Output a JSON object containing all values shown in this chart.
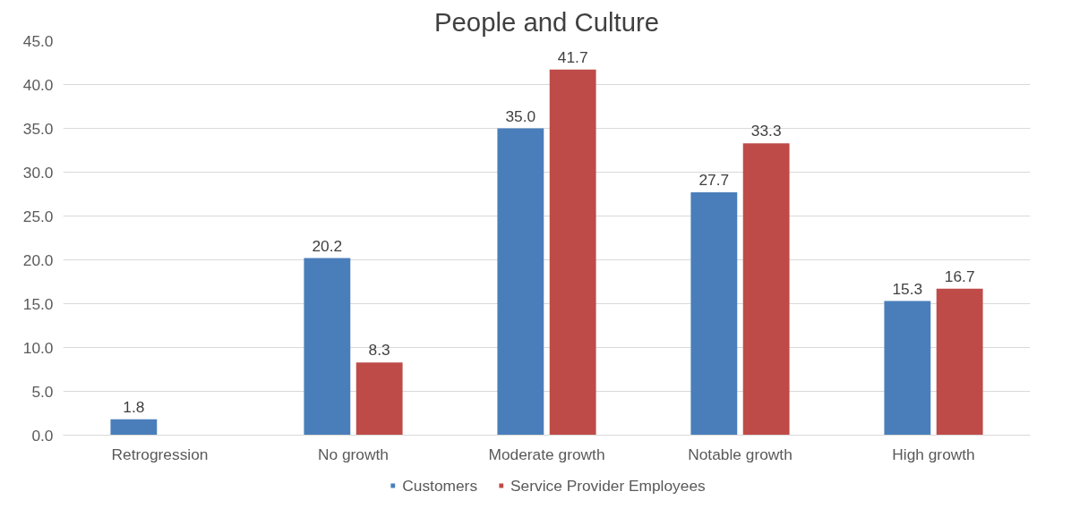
{
  "chart_data": {
    "type": "bar",
    "title": "People and Culture",
    "categories": [
      "Retrogression",
      "No growth",
      "Moderate growth",
      "Notable growth",
      "High growth"
    ],
    "series": [
      {
        "name": "Customers",
        "color": "#4a7ebb",
        "values": [
          1.8,
          20.2,
          35.0,
          27.7,
          15.3
        ],
        "value_labels": [
          "1.8",
          "20.2",
          "35.0",
          "27.7",
          "15.3"
        ]
      },
      {
        "name": "Service Provider Employees",
        "color": "#be4b48",
        "values": [
          null,
          8.3,
          41.7,
          33.3,
          16.7
        ],
        "value_labels": [
          null,
          "8.3",
          "41.7",
          "33.3",
          "16.7"
        ]
      }
    ],
    "ylim": [
      0,
      45
    ],
    "yticks": [
      {
        "value": 0,
        "label": "0.0"
      },
      {
        "value": 5,
        "label": "5.0"
      },
      {
        "value": 10,
        "label": "10.0"
      },
      {
        "value": 15,
        "label": "15.0"
      },
      {
        "value": 20,
        "label": "20.0"
      },
      {
        "value": 25,
        "label": "25.0"
      },
      {
        "value": 30,
        "label": "30.0"
      },
      {
        "value": 35,
        "label": "35.0"
      },
      {
        "value": 40,
        "label": "40.0"
      },
      {
        "value": 45,
        "label": "45.0"
      }
    ],
    "grid": "y",
    "legend": "bottom"
  }
}
